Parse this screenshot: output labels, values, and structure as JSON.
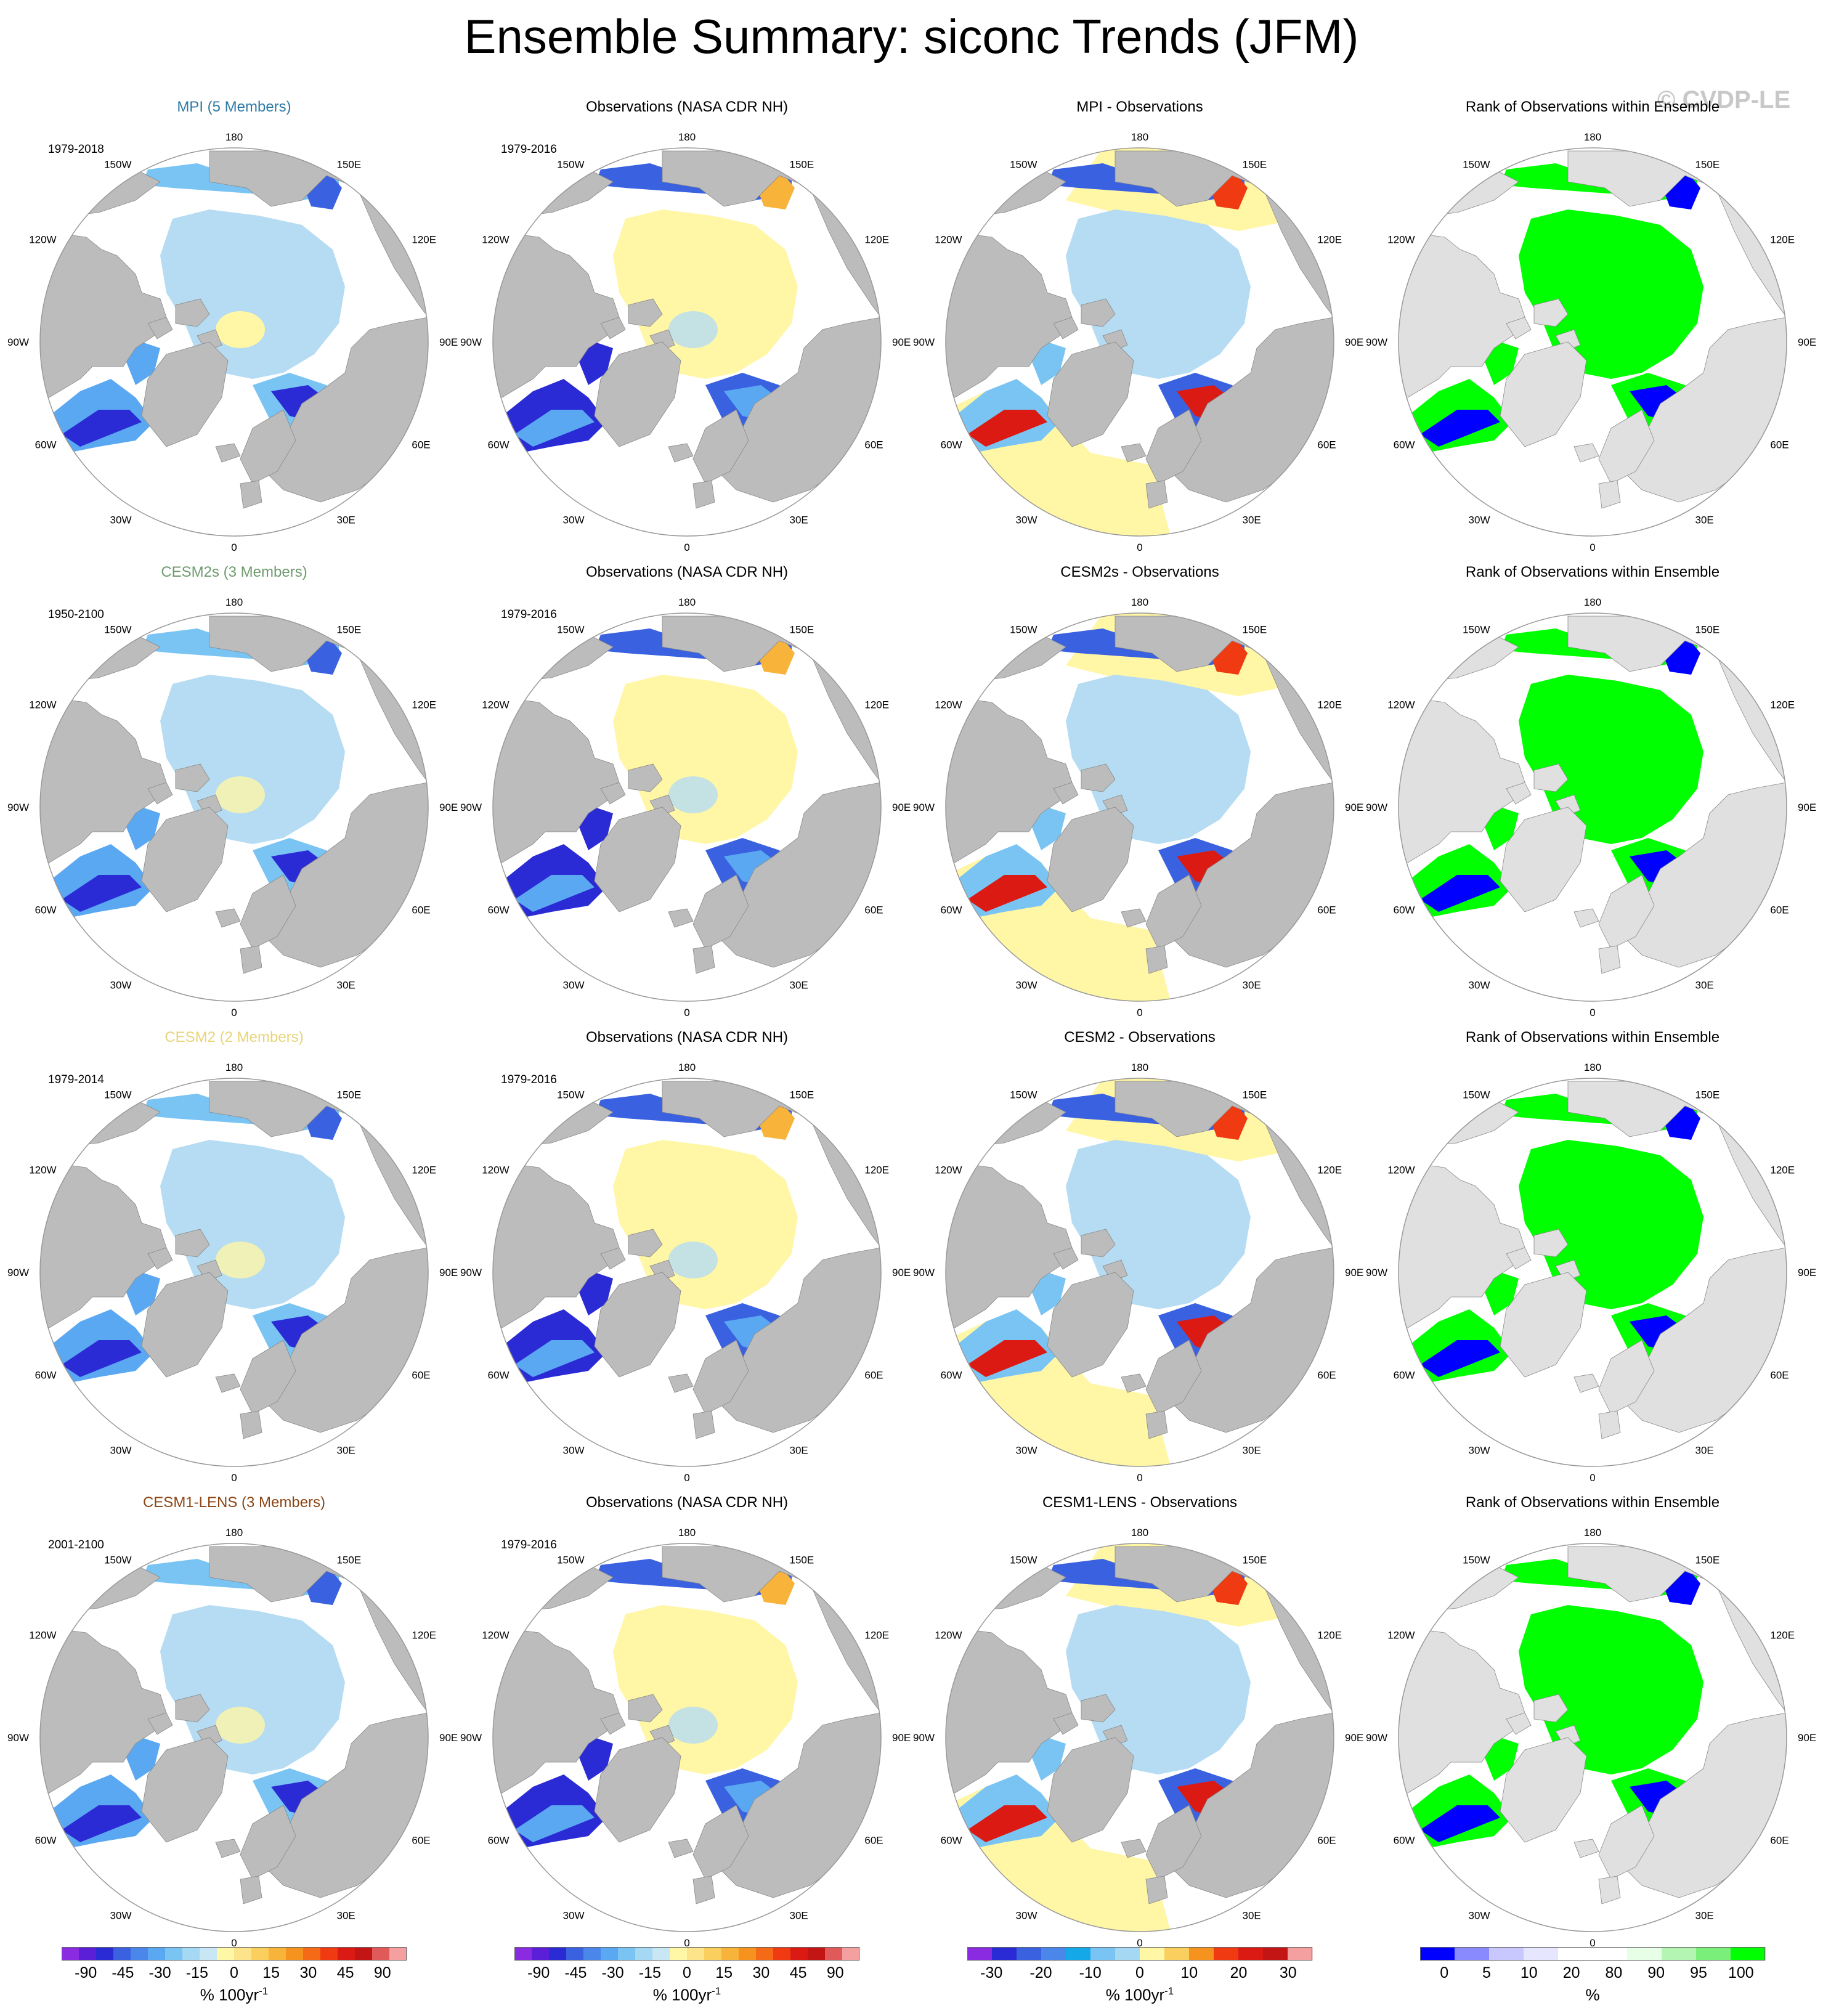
{
  "title": "Ensemble Summary: siconc Trends (JFM)",
  "watermark": "© CVDP-LE",
  "colors": {
    "land": "#bcbcbc",
    "ocean": "#ffffff",
    "light_land": "#e0e0e0",
    "sea_ice_light_blue": "#b5dcf2",
    "pale_yellow": "#fff6a6"
  },
  "rows": [
    {
      "model_title": "MPI (5 Members)",
      "model_color": "#2f7aa6",
      "model_period": "1979-2018",
      "obs_title": "Observations (NASA CDR NH)",
      "obs_period": "1979-2016",
      "diff_title": "MPI - Observations",
      "rank_title": "Rank of Observations within Ensemble"
    },
    {
      "model_title": "CESM2s (3 Members)",
      "model_color": "#6e9a6e",
      "model_period": "1950-2100",
      "obs_title": "Observations (NASA CDR NH)",
      "obs_period": "1979-2016",
      "diff_title": "CESM2s - Observations",
      "rank_title": "Rank of Observations within Ensemble"
    },
    {
      "model_title": "CESM2 (2 Members)",
      "model_color": "#e8d47a",
      "model_period": "1979-2014",
      "obs_title": "Observations (NASA CDR NH)",
      "obs_period": "1979-2016",
      "diff_title": "CESM2 - Observations",
      "rank_title": "Rank of Observations within Ensemble"
    },
    {
      "model_title": "CESM1-LENS (3 Members)",
      "model_color": "#8b4513",
      "model_period": "2001-2100",
      "obs_title": "Observations (NASA CDR NH)",
      "obs_period": "1979-2016",
      "diff_title": "CESM1-LENS - Observations",
      "rank_title": "Rank of Observations within Ensemble"
    }
  ],
  "lon_labels": [
    "180",
    "150E",
    "120E",
    "90E",
    "60E",
    "30E",
    "0",
    "30W",
    "60W",
    "90W",
    "120W",
    "150W"
  ],
  "colorbars": [
    {
      "title": "% 100yr",
      "superscript": "-1",
      "colors": [
        "#8a2be2",
        "#5a1fd6",
        "#2b2bd6",
        "#3a62e0",
        "#4b86ea",
        "#5aa8f2",
        "#7ac4f4",
        "#a5d8f2",
        "#c9e6f4",
        "#fff6a6",
        "#fde38a",
        "#fbcf5e",
        "#f8b33a",
        "#f6931f",
        "#f46a17",
        "#ef3a12",
        "#db1a13",
        "#c41515",
        "#e05a5a",
        "#f5a0a0"
      ],
      "ticks": [
        "-90",
        "-45",
        "-30",
        "-15",
        "0",
        "15",
        "30",
        "45",
        "90"
      ]
    },
    {
      "title": "% 100yr",
      "superscript": "-1",
      "colors": [
        "#8a2be2",
        "#5a1fd6",
        "#2b2bd6",
        "#3a62e0",
        "#4b86ea",
        "#5aa8f2",
        "#7ac4f4",
        "#a5d8f2",
        "#c9e6f4",
        "#fff6a6",
        "#fde38a",
        "#fbcf5e",
        "#f8b33a",
        "#f6931f",
        "#f46a17",
        "#ef3a12",
        "#db1a13",
        "#c41515",
        "#e05a5a",
        "#f5a0a0"
      ],
      "ticks": [
        "-90",
        "-45",
        "-30",
        "-15",
        "0",
        "15",
        "30",
        "45",
        "90"
      ]
    },
    {
      "title": "% 100yr",
      "superscript": "-1",
      "colors": [
        "#8a2be2",
        "#2b2bd6",
        "#3a62e0",
        "#4b86ea",
        "#14a8e8",
        "#7ac4f4",
        "#a5d8f2",
        "#fff6a6",
        "#fbcf5e",
        "#f6931f",
        "#ef3a12",
        "#db1a13",
        "#c41515",
        "#f5a0a0"
      ],
      "ticks": [
        "-30",
        "-20",
        "-10",
        "0",
        "10",
        "20",
        "30"
      ]
    },
    {
      "title": "%",
      "superscript": "",
      "colors": [
        "#0000ff",
        "#8a8aff",
        "#c8c8ff",
        "#e6e6ff",
        "#ffffff",
        "#ffffff",
        "#e6ffe6",
        "#b4f5b4",
        "#7af07a",
        "#00ff00"
      ],
      "ticks": [
        "0",
        "5",
        "10",
        "20",
        "80",
        "90",
        "95",
        "100"
      ]
    }
  ]
}
